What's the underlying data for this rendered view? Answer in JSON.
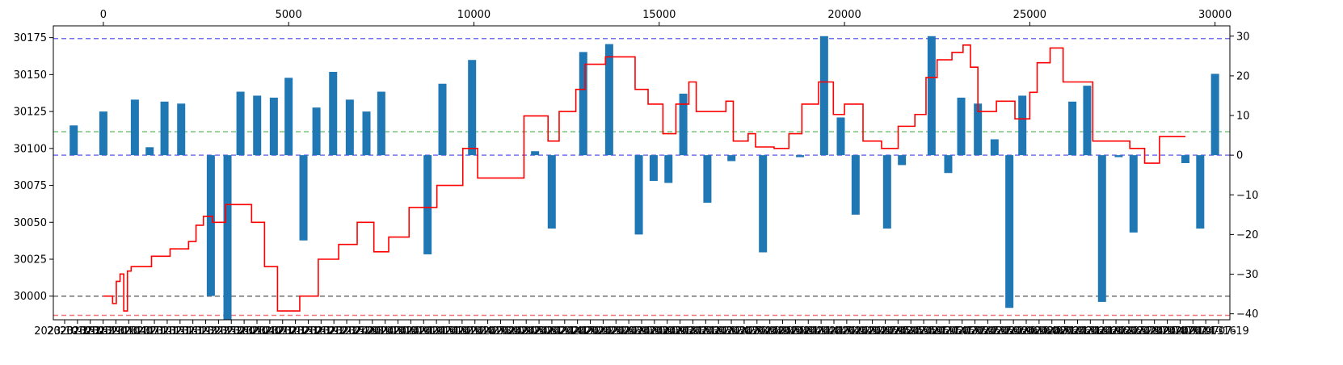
{
  "chart_data": {
    "type": "bar",
    "title": "",
    "xlabel": "",
    "ylabel": "",
    "grid": false,
    "top_axis": {
      "range": [
        -1350,
        30400
      ],
      "ticks": [
        0,
        5000,
        10000,
        15000,
        20000,
        25000,
        30000
      ],
      "tick_labels": [
        "0",
        "5000",
        "10000",
        "15000",
        "20000",
        "25000",
        "30000"
      ]
    },
    "left_axis": {
      "range": [
        29984,
        30183
      ],
      "ticks": [
        30000,
        30025,
        30050,
        30075,
        30100,
        30125,
        30150,
        30175
      ],
      "tick_labels": [
        "30000",
        "30025",
        "30050",
        "30075",
        "30100",
        "30125",
        "30150",
        "30175"
      ]
    },
    "right_axis": {
      "range": [
        -41.5,
        32.6
      ],
      "ticks": [
        -40,
        -30,
        -20,
        -10,
        0,
        10,
        20,
        30
      ],
      "tick_labels": [
        "−40",
        "−30",
        "−20",
        "−10",
        "0",
        "10",
        "20",
        "30"
      ]
    },
    "bottom_axis": {
      "tick_labels": [
        "2023-10-23",
        "2023-10-26",
        "2023-10-29",
        "2023-11-01",
        "2023-11-04",
        "2023-11-07",
        "2023-11-10",
        "2023-11-13",
        "2023-11-16",
        "2023-11-19",
        "2023-11-22",
        "2023-11-25",
        "2023-11-28",
        "2023-12-01",
        "2023-12-04",
        "2023-12-07",
        "2023-12-10",
        "2023-12-13",
        "2023-12-16",
        "2023-12-19",
        "2023-12-22",
        "2023-12-25",
        "2023-12-28",
        "2023-12-31",
        "2024-01-03",
        "2024-01-06",
        "2024-01-09",
        "2024-01-12",
        "2024-01-15",
        "2024-01-18",
        "2024-01-21",
        "2024-01-24",
        "2024-01-27",
        "2024-01-30",
        "2024-02-02",
        "2024-02-05",
        "2024-02-08",
        "2024-02-11",
        "2024-02-14",
        "2024-02-17",
        "2024-02-20",
        "2024-02-23",
        "2024-02-26",
        "2024-02-29",
        "2024-03-03",
        "2024-03-06",
        "2024-03-09",
        "2024-03-12",
        "2024-03-15",
        "2024-03-18",
        "2024-03-21",
        "2024-03-24",
        "2024-03-27",
        "2024-03-30",
        "2024-04-02",
        "2024-04-05",
        "2024-04-08",
        "2024-04-11",
        "2024-04-14",
        "2024-04-17",
        "2024-04-20",
        "2024-04-23",
        "2024-04-26",
        "2024-04-29",
        "2024-05-02",
        "2024-05-05",
        "2024-05-08",
        "2024-05-11",
        "2024-05-14",
        "2024-05-17",
        "2024-05-20",
        "2024-05-23",
        "2024-05-26",
        "2024-05-29",
        "2024-06-01",
        "2024-06-04",
        "2024-06-07",
        "2024-06-10",
        "2024-06-13",
        "2024-06-16",
        "2024-06-19",
        "2024-06-22",
        "2024-06-25",
        "2024-06-28",
        "2024-07-01",
        "2024-07-04",
        "2024-07-07",
        "2024-07-10",
        "2024-07-13",
        "2024-07-16",
        "2024-07-19"
      ]
    },
    "hlines": [
      {
        "axis": "right",
        "value": 29.4,
        "color": "#6b6bf0",
        "style": "dashed"
      },
      {
        "axis": "right",
        "value": 5.9,
        "color": "#6fbf6f",
        "style": "dashed"
      },
      {
        "axis": "right",
        "value": 0,
        "color": "#6b6bf0",
        "style": "dashed"
      },
      {
        "axis": "left",
        "value": 30000,
        "color": "#666666",
        "style": "dashed"
      },
      {
        "axis": "left",
        "value": 29987,
        "color": "#f07070",
        "style": "dashed"
      }
    ],
    "series": [
      {
        "type": "bar",
        "axis": "right",
        "color": "#1f77b4",
        "x": [
          -800,
          0,
          850,
          1250,
          1650,
          2100,
          2900,
          3350,
          3700,
          4150,
          4600,
          5000,
          5400,
          5750,
          6200,
          6650,
          7100,
          7500,
          8750,
          9150,
          9950,
          11650,
          12100,
          12950,
          13650,
          14450,
          14850,
          15250,
          15650,
          16300,
          16950,
          17800,
          18800,
          19450,
          19900,
          20300,
          21150,
          21550,
          22350,
          22800,
          23150,
          23600,
          24050,
          24450,
          24800,
          26150,
          26550,
          26950,
          27400,
          27800,
          29200,
          29600,
          30000
        ],
        "values": [
          7.5,
          11,
          14,
          2,
          13.5,
          13,
          -35.5,
          -41.5,
          16,
          15,
          14.5,
          19.5,
          -21.5,
          12,
          21,
          14,
          11,
          16,
          -25,
          18,
          24,
          1,
          -18.5,
          26,
          28,
          -20,
          -6.5,
          -7,
          15.5,
          -12,
          -1.5,
          -24.5,
          -0.5,
          30,
          9.5,
          -15,
          -18.5,
          -2.5,
          30,
          -4.5,
          14.5,
          13,
          4,
          -38.5,
          15,
          13.5,
          17.5,
          -37,
          -0.5,
          -19.5,
          -2,
          -18.5,
          20.5
        ]
      },
      {
        "type": "step-line",
        "axis": "left",
        "color": "#ff0000",
        "x": [
          0,
          250,
          350,
          450,
          550,
          650,
          750,
          1300,
          1800,
          2050,
          2300,
          2500,
          2700,
          2950,
          3300,
          4000,
          4350,
          4700,
          5300,
          5800,
          6350,
          6850,
          7300,
          7700,
          8250,
          9000,
          9700,
          10100,
          11350,
          11700,
          12000,
          12300,
          12750,
          13000,
          13550,
          14350,
          14700,
          15100,
          15450,
          15800,
          16000,
          16800,
          17000,
          17400,
          17600,
          18100,
          18500,
          18850,
          19300,
          19700,
          20000,
          20500,
          21000,
          21450,
          21900,
          22200,
          22500,
          22900,
          23200,
          23400,
          23600,
          24100,
          24600,
          25000,
          25200,
          25550,
          25900,
          26350,
          26700,
          27200,
          27700,
          28100,
          28500,
          28800,
          29200
        ],
        "values": [
          30000,
          29995,
          30010,
          30015,
          29990,
          30017,
          30020,
          30027,
          30032,
          30032,
          30037,
          30048,
          30054,
          30050,
          30062,
          30050,
          30020,
          29990,
          30000,
          30025,
          30035,
          30050,
          30030,
          30040,
          30060,
          30075,
          30100,
          30080,
          30122,
          30122,
          30105,
          30125,
          30140,
          30157,
          30162,
          30140,
          30130,
          30110,
          30130,
          30145,
          30125,
          30132,
          30105,
          30110,
          30101,
          30100,
          30110,
          30130,
          30145,
          30123,
          30130,
          30105,
          30100,
          30115,
          30123,
          30148,
          30160,
          30165,
          30170,
          30155,
          30125,
          30132,
          30120,
          30138,
          30158,
          30168,
          30145,
          30145,
          30105,
          30105,
          30100,
          30090,
          30108,
          30108,
          30108
        ]
      }
    ]
  }
}
